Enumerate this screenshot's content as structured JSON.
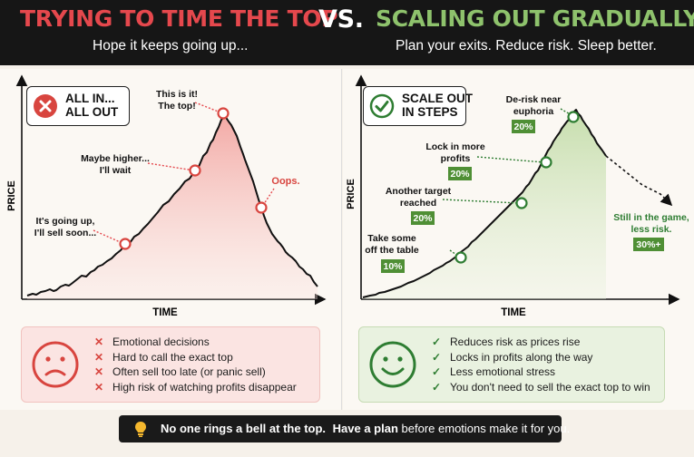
{
  "header": {
    "left_title": "TRYING TO TIME THE TOP",
    "vs": "VS.",
    "right_title": "SCALING OUT GRADUALLY",
    "left_subtitle": "Hope it keeps going up...",
    "right_subtitle": "Plan your exits. Reduce risk. Sleep better."
  },
  "colors": {
    "red": "#e5484d",
    "green": "#8ec26c",
    "dark_green": "#2e7d32",
    "black": "#161616"
  },
  "left": {
    "badge_line1": "ALL IN...",
    "badge_line2": "ALL OUT",
    "badge_icon": "x-circle-icon",
    "ylabel": "PRICE",
    "xlabel": "TIME",
    "annotations": [
      {
        "line1": "It's going up,",
        "line2": "I'll sell soon..."
      },
      {
        "line1": "Maybe higher...",
        "line2": "I'll wait"
      },
      {
        "line1": "This is it!",
        "line2": "The top!"
      },
      {
        "line1": "Oops.",
        "line2": ""
      }
    ],
    "face_icon": "sad-face-icon",
    "points": [
      "Emotional decisions",
      "Hard to call the exact top",
      "Often sell too late (or panic sell)",
      "High risk of watching profits disappear"
    ]
  },
  "right": {
    "badge_line1": "SCALE OUT",
    "badge_line2": "IN STEPS",
    "badge_icon": "check-circle-icon",
    "ylabel": "PRICE",
    "xlabel": "TIME",
    "steps": [
      {
        "line1": "Take some",
        "line2": "off the table",
        "pct": "10%"
      },
      {
        "line1": "Another target",
        "line2": "reached",
        "pct": "20%"
      },
      {
        "line1": "Lock in more",
        "line2": "profits",
        "pct": "20%"
      },
      {
        "line1": "De-risk near",
        "line2": "euphoria",
        "pct": "20%"
      }
    ],
    "final": {
      "line1": "Still in the game,",
      "line2": "less risk.",
      "pct": "30%+"
    },
    "face_icon": "happy-face-icon",
    "points": [
      "Reduces risk as prices rise",
      "Locks in profits along the way",
      "Less emotional stress",
      "You don't need to sell the exact top to win"
    ]
  },
  "bottom": {
    "icon": "lightbulb-icon",
    "bold1": "No one rings a bell at the top.",
    "bold2": "Have a plan",
    "rest": "before emotions make it for you."
  }
}
